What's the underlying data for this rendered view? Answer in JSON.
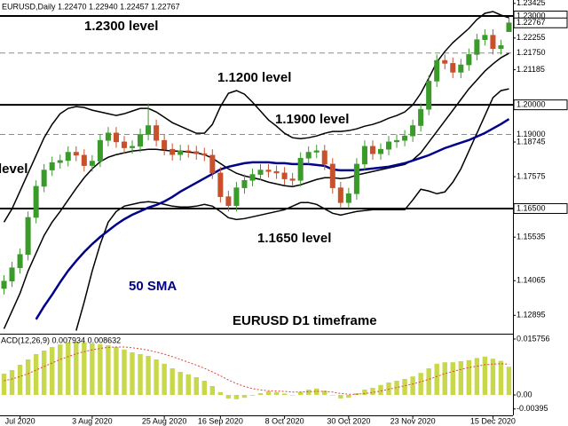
{
  "chart_data": [
    {
      "type": "candlestick",
      "title": "EURUSD,Daily  1.22470 1.22940 1.22457 1.22767",
      "categories": [
        null,
        null,
        "Jul 2020",
        null,
        null,
        null,
        null,
        null,
        null,
        null,
        null,
        "3 Aug 2020",
        null,
        null,
        null,
        null,
        null,
        null,
        null,
        null,
        "25 Aug 2020",
        null,
        null,
        null,
        null,
        null,
        null,
        "16 Sep 2020",
        null,
        null,
        null,
        null,
        null,
        null,
        null,
        "8 Oct 2020",
        null,
        null,
        null,
        null,
        null,
        null,
        null,
        "30 Oct 2020",
        null,
        null,
        null,
        null,
        null,
        null,
        null,
        "23 Nov 2020",
        null,
        null,
        null,
        null,
        null,
        null,
        null,
        null,
        null,
        "15 Dec 2020",
        null,
        null
      ],
      "open": [
        1.138,
        1.1405,
        1.145,
        1.1495,
        1.162,
        1.1725,
        1.178,
        1.1805,
        1.1812,
        1.184,
        1.183,
        1.1795,
        1.181,
        1.188,
        1.1905,
        1.1875,
        1.1855,
        1.186,
        1.19,
        1.193,
        1.188,
        1.185,
        1.1832,
        1.1845,
        1.1842,
        1.1835,
        1.183,
        1.177,
        1.169,
        1.166,
        1.172,
        1.1745,
        1.1765,
        1.178,
        1.1775,
        1.177,
        1.175,
        1.1745,
        1.182,
        1.184,
        1.1845,
        1.18,
        1.172,
        1.167,
        1.17,
        1.18,
        1.186,
        1.1835,
        1.185,
        1.1875,
        1.188,
        1.1895,
        1.193,
        1.1985,
        1.208,
        1.215,
        1.214,
        1.211,
        1.2135,
        1.217,
        1.222,
        1.2235,
        1.219,
        1.2247
      ],
      "high": [
        1.1425,
        1.147,
        1.1515,
        1.164,
        1.1745,
        1.18,
        1.1825,
        1.1832,
        1.186,
        1.186,
        1.185,
        1.183,
        1.19,
        1.1925,
        1.1925,
        1.1895,
        1.188,
        1.192,
        1.2005,
        1.195,
        1.19,
        1.187,
        1.1865,
        1.1865,
        1.1862,
        1.1855,
        1.185,
        1.179,
        1.171,
        1.174,
        1.1765,
        1.1785,
        1.18,
        1.18,
        1.1795,
        1.179,
        1.177,
        1.184,
        1.186,
        1.1865,
        1.1865,
        1.182,
        1.174,
        1.172,
        1.182,
        1.188,
        1.188,
        1.187,
        1.1895,
        1.19,
        1.1915,
        1.195,
        1.2005,
        1.21,
        1.217,
        1.217,
        1.216,
        1.2155,
        1.219,
        1.224,
        1.2255,
        1.2255,
        1.222,
        1.2294
      ],
      "low": [
        1.136,
        1.1385,
        1.143,
        1.1475,
        1.16,
        1.1705,
        1.176,
        1.1785,
        1.1792,
        1.181,
        1.1775,
        1.1775,
        1.179,
        1.186,
        1.1855,
        1.1835,
        1.1835,
        1.184,
        1.188,
        1.186,
        1.183,
        1.1812,
        1.1812,
        1.1822,
        1.1815,
        1.181,
        1.175,
        1.167,
        1.164,
        1.164,
        1.17,
        1.1725,
        1.1745,
        1.1755,
        1.175,
        1.173,
        1.1725,
        1.1725,
        1.18,
        1.182,
        1.178,
        1.17,
        1.165,
        1.165,
        1.168,
        1.178,
        1.1815,
        1.1815,
        1.183,
        1.1855,
        1.186,
        1.1875,
        1.191,
        1.1965,
        1.206,
        1.212,
        1.209,
        1.209,
        1.2115,
        1.215,
        1.22,
        1.217,
        1.217,
        1.22457
      ],
      "close": [
        1.1405,
        1.145,
        1.1495,
        1.162,
        1.1725,
        1.178,
        1.1805,
        1.1812,
        1.184,
        1.183,
        1.1795,
        1.181,
        1.188,
        1.1905,
        1.1875,
        1.1855,
        1.186,
        1.19,
        1.193,
        1.188,
        1.185,
        1.1832,
        1.1845,
        1.1842,
        1.1835,
        1.183,
        1.177,
        1.169,
        1.166,
        1.172,
        1.1745,
        1.1765,
        1.178,
        1.1775,
        1.177,
        1.175,
        1.1745,
        1.182,
        1.184,
        1.1845,
        1.18,
        1.172,
        1.167,
        1.17,
        1.18,
        1.186,
        1.1835,
        1.185,
        1.1875,
        1.188,
        1.1895,
        1.193,
        1.1985,
        1.208,
        1.215,
        1.214,
        1.211,
        1.2135,
        1.217,
        1.222,
        1.2235,
        1.219,
        1.22,
        1.22767
      ],
      "up_color": "#3a9a2a",
      "down_color": "#c8502a",
      "overlays": [
        {
          "color": "#000000",
          "values": [
            1.1604,
            1.1649,
            1.1709,
            1.1769,
            1.1829,
            1.1889,
            1.1934,
            1.197,
            1.1988,
            1.1994,
            1.1991,
            1.1982,
            1.1976,
            1.197,
            1.1964,
            1.197,
            1.1979,
            1.1988,
            1.1988,
            1.1976,
            1.1958,
            1.194,
            1.1928,
            1.1916,
            1.1904,
            1.1904,
            1.1934,
            1.1994,
            1.2039,
            1.2048,
            1.2036,
            1.2009,
            1.1979,
            1.1949,
            1.1928,
            1.1904,
            1.1889,
            1.1886,
            1.1889,
            1.1895,
            1.1904,
            1.191,
            1.191,
            1.1913,
            1.1919,
            1.1928,
            1.1934,
            1.1943,
            1.1955,
            1.1964,
            1.1976,
            1.2,
            1.2039,
            1.209,
            1.2144,
            1.218,
            1.221,
            1.2234,
            1.2258,
            1.2288,
            1.2309,
            1.2315,
            1.2303,
            1.2294
          ]
        },
        {
          "color": "#000000",
          "values": [
            1.1244,
            1.1304,
            1.1364,
            1.1439,
            1.1499,
            1.1559,
            1.1604,
            1.164,
            1.1679,
            1.1718,
            1.1754,
            1.1784,
            1.1808,
            1.1823,
            1.1832,
            1.1838,
            1.1844,
            1.1847,
            1.185,
            1.185,
            1.1847,
            1.1844,
            1.1844,
            1.1841,
            1.1838,
            1.1832,
            1.182,
            1.1802,
            1.1784,
            1.1769,
            1.176,
            1.1754,
            1.1748,
            1.1739,
            1.1733,
            1.1727,
            1.1724,
            1.173,
            1.1739,
            1.1748,
            1.1754,
            1.1754,
            1.1751,
            1.1754,
            1.1763,
            1.1769,
            1.1775,
            1.1781,
            1.1787,
            1.1793,
            1.1799,
            1.1814,
            1.1838,
            1.1874,
            1.191,
            1.1946,
            1.1982,
            1.2018,
            1.2054,
            1.2084,
            1.2114,
            1.2138,
            1.2159,
            1.2174
          ]
        },
        {
          "color": "#000000",
          "values": [
            null,
            null,
            null,
            null,
            null,
            null,
            null,
            null,
            null,
            1.1238,
            1.1334,
            1.1439,
            1.1529,
            1.1604,
            1.164,
            1.1658,
            1.1664,
            1.167,
            1.1673,
            1.167,
            1.1664,
            1.1658,
            1.1655,
            1.1655,
            1.1658,
            1.1664,
            1.1658,
            1.164,
            1.1619,
            1.1613,
            1.1616,
            1.1622,
            1.1628,
            1.1634,
            1.164,
            1.1646,
            1.1658,
            1.167,
            1.167,
            1.1664,
            1.1649,
            1.1634,
            1.1628,
            1.1634,
            1.164,
            1.1643,
            1.1646,
            1.1646,
            1.1646,
            1.1646,
            1.1646,
            1.1679,
            1.1715,
            1.1709,
            1.17,
            1.1706,
            1.1739,
            1.1784,
            1.1844,
            1.1904,
            1.1964,
            1.2024,
            1.2048,
            1.2054
          ]
        },
        {
          "color": "#00008b",
          "values": [
            null,
            null,
            null,
            null,
            1.1276,
            1.132,
            1.1359,
            1.1401,
            1.144,
            1.1473,
            1.1503,
            1.153,
            1.1554,
            1.1575,
            1.1596,
            1.1614,
            1.1629,
            1.1641,
            1.1653,
            1.1662,
            1.1674,
            1.1689,
            1.1707,
            1.1722,
            1.1737,
            1.1752,
            1.1767,
            1.1782,
            1.1791,
            1.1797,
            1.1803,
            1.1806,
            1.1806,
            1.1806,
            1.1803,
            1.1803,
            1.18,
            1.18,
            1.18,
            1.1797,
            1.1794,
            1.1782,
            1.1779,
            1.1779,
            1.1779,
            1.1782,
            1.1785,
            1.1788,
            1.1791,
            1.1797,
            1.1803,
            1.1812,
            1.1821,
            1.183,
            1.1842,
            1.1854,
            1.1863,
            1.1872,
            1.1881,
            1.1893,
            1.1905,
            1.192,
            1.1935,
            1.1952
          ]
        }
      ],
      "levels": [
        {
          "value": 1.23,
          "label": "1.23000",
          "dashed": false
        },
        {
          "value": 1.2175,
          "label": "1.21750",
          "dashed": true
        },
        {
          "value": 1.2,
          "label": "1.20000",
          "dashed": false
        },
        {
          "value": 1.19,
          "label": "1.19000",
          "dashed": true
        },
        {
          "value": 1.165,
          "label": "1.16500",
          "dashed": false
        }
      ],
      "current_price": 1.22767,
      "annotations": [
        {
          "text": "1.2300 level",
          "color": "#000000"
        },
        {
          "text": "1.1200 level",
          "color": "#000000"
        },
        {
          "text": "1.1900 level",
          "color": "#000000"
        },
        {
          "text": "level",
          "color": "#000000"
        },
        {
          "text": "1.1650 level",
          "color": "#000000"
        },
        {
          "text": "50 SMA",
          "color": "#00008b"
        },
        {
          "text": "EURUSD D1 timeframe",
          "color": "#000000"
        }
      ],
      "ylim": [
        1.12275,
        1.23539
      ],
      "yticks": [
        1.23425,
        1.22255,
        1.21185,
        1.18745,
        1.17575,
        1.15535,
        1.14065,
        1.12895
      ]
    },
    {
      "type": "bar",
      "title": "ACD(12,26,9) 0.007934 0.008632",
      "values": [
        0.006,
        0.007,
        0.0085,
        0.01,
        0.0115,
        0.0125,
        0.0135,
        0.0142,
        0.0148,
        0.015,
        0.0148,
        0.0145,
        0.0143,
        0.014,
        0.0135,
        0.0128,
        0.012,
        0.0115,
        0.011,
        0.01,
        0.0088,
        0.0075,
        0.0065,
        0.0058,
        0.005,
        0.004,
        0.0025,
        0.0008,
        -0.001,
        -0.0012,
        -0.0008,
        -0.0002,
        0.0005,
        0.001,
        0.0008,
        0.0004,
        0.0,
        0.0008,
        0.0015,
        0.0018,
        0.0012,
        0.0,
        -0.001,
        -0.0008,
        0.0005,
        0.0015,
        0.002,
        0.0028,
        0.0035,
        0.004,
        0.0045,
        0.0052,
        0.0062,
        0.0075,
        0.0088,
        0.0092,
        0.0092,
        0.0095,
        0.0098,
        0.0104,
        0.0108,
        0.0102,
        0.0096,
        0.007934
      ],
      "color": "#c8d84a",
      "signal": {
        "color": "#e04040",
        "values": [
          0.004,
          0.0045,
          0.0052,
          0.006,
          0.007,
          0.008,
          0.009,
          0.01,
          0.0108,
          0.0116,
          0.0122,
          0.0127,
          0.0131,
          0.0134,
          0.0135,
          0.0135,
          0.0133,
          0.013,
          0.0126,
          0.0121,
          0.0115,
          0.0108,
          0.01,
          0.0092,
          0.0084,
          0.0075,
          0.0065,
          0.0054,
          0.0042,
          0.0032,
          0.0024,
          0.0018,
          0.0014,
          0.0012,
          0.0011,
          0.001,
          0.0008,
          0.0008,
          0.0009,
          0.001,
          0.001,
          0.0008,
          0.0004,
          0.0002,
          0.0002,
          0.0004,
          0.0007,
          0.0011,
          0.0016,
          0.0021,
          0.0026,
          0.0031,
          0.0037,
          0.0044,
          0.0052,
          0.006,
          0.0066,
          0.0072,
          0.0077,
          0.0081,
          0.0085,
          0.0087,
          0.0088,
          0.008632
        ]
      },
      "ylim": [
        -0.00575,
        0.01675
      ],
      "yticks": [
        0.015756,
        {
          "value": 0,
          "label": "0.00"
        },
        -0.00395
      ]
    }
  ]
}
